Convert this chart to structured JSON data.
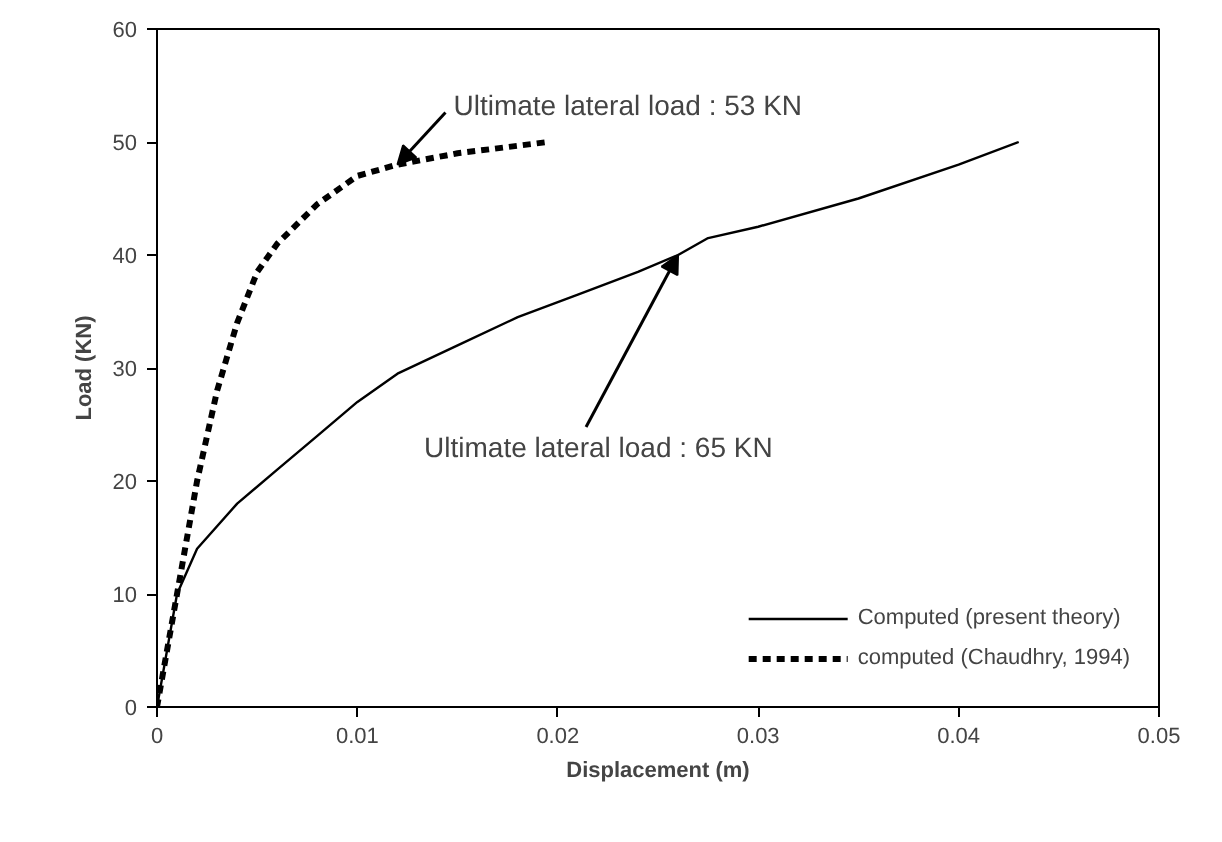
{
  "chart_data": {
    "type": "line",
    "xlabel": "Displacement (m)",
    "ylabel": "Load (KN)",
    "xlim": [
      0,
      0.05
    ],
    "ylim": [
      0,
      60
    ],
    "xticks": [
      0,
      0.01,
      0.02,
      0.03,
      0.04,
      0.05
    ],
    "yticks": [
      0,
      10,
      20,
      30,
      40,
      50,
      60
    ],
    "grid": false,
    "legend": "bottom right",
    "marker": "none",
    "series": [
      {
        "name": "Computed (present theory)",
        "color": "#000000",
        "line_style": "solid",
        "x": [
          0,
          0.0005,
          0.001,
          0.002,
          0.004,
          0.006,
          0.008,
          0.01,
          0.012,
          0.015,
          0.018,
          0.021,
          0.024,
          0.026,
          0.0275,
          0.03,
          0.035,
          0.04,
          0.043
        ],
        "values": [
          0,
          5,
          10,
          14,
          18,
          21,
          24,
          27,
          29.5,
          32,
          34.5,
          36.5,
          38.5,
          40,
          41.5,
          42.5,
          45,
          48,
          50
        ]
      },
      {
        "name": "computed (Chaudhry, 1994)",
        "color": "#000000",
        "line_style": "dashed",
        "x": [
          0,
          0.001,
          0.002,
          0.003,
          0.004,
          0.005,
          0.006,
          0.008,
          0.01,
          0.012,
          0.015,
          0.0195
        ],
        "values": [
          0,
          10,
          20,
          28,
          34,
          38.5,
          41,
          44.5,
          47,
          48,
          49,
          50
        ]
      }
    ],
    "annotations": [
      {
        "text": "Ultimate lateral load : 53 KN",
        "x": 0.012,
        "y": 48
      },
      {
        "text": "Ultimate lateral load : 65 KN",
        "x": 0.026,
        "y": 40
      }
    ]
  }
}
